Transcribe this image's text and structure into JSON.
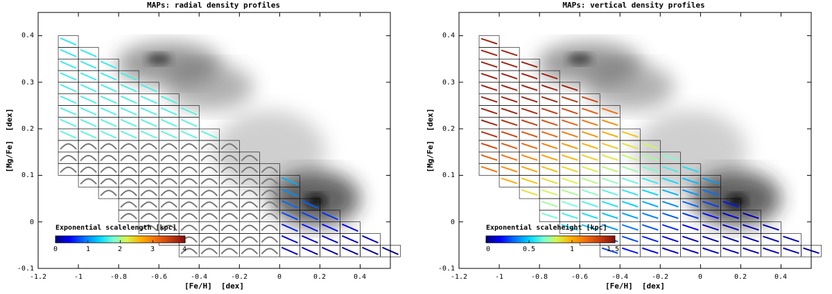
{
  "chart_data": [
    {
      "type": "heatmap",
      "title": "MAPs: radial density profiles",
      "xlabel": "[Fe/H]  [dex]",
      "ylabel": "[Mg/Fe]  [dex]",
      "xlim": [
        -1.2,
        0.55
      ],
      "ylim": [
        -0.1,
        0.45
      ],
      "xticks": [
        -1.2,
        -1.0,
        -0.8,
        -0.6,
        -0.4,
        -0.2,
        0.0,
        0.2,
        0.4
      ],
      "xticklabels": [
        "-1.2",
        "-1",
        "-0.8",
        "-0.6",
        "-0.4",
        "-0.2",
        "0",
        "0.2",
        "0.4"
      ],
      "yticks": [
        -0.1,
        0.0,
        0.1,
        0.2,
        0.3,
        0.4
      ],
      "yticklabels": [
        "-0.1",
        "0",
        "0.1",
        "0.2",
        "0.3",
        "0.4"
      ],
      "colorbar": {
        "title": "Exponential scalelength [kpc]",
        "range": [
          0,
          4
        ],
        "ticks": [
          0,
          1,
          2,
          3,
          4
        ],
        "ticklabels": [
          "0",
          "1",
          "2",
          "3",
          "4"
        ]
      },
      "profile_kind": "radial"
    },
    {
      "type": "heatmap",
      "title": "MAPs: vertical density profiles",
      "xlabel": "[Fe/H]  [dex]",
      "ylabel": "[Mg/Fe]  [dex]",
      "xlim": [
        -1.2,
        0.55
      ],
      "ylim": [
        -0.1,
        0.45
      ],
      "xticks": [
        -1.2,
        -1.0,
        -0.8,
        -0.6,
        -0.4,
        -0.2,
        0.0,
        0.2,
        0.4
      ],
      "xticklabels": [
        "-1.2",
        "-1",
        "-0.8",
        "-0.6",
        "-0.4",
        "-0.2",
        "0",
        "0.2",
        "0.4"
      ],
      "yticks": [
        -0.1,
        0.0,
        0.1,
        0.2,
        0.3,
        0.4
      ],
      "yticklabels": [
        "-0.1",
        "0",
        "0.1",
        "0.2",
        "0.3",
        "0.4"
      ],
      "colorbar": {
        "title": "Exponential scaleheight [kpc]",
        "range": [
          0,
          1.5
        ],
        "ticks": [
          0,
          0.5,
          1,
          1.5
        ],
        "ticklabels": [
          "0",
          "0.5",
          "1",
          "1.5"
        ]
      },
      "profile_kind": "vertical"
    }
  ]
}
